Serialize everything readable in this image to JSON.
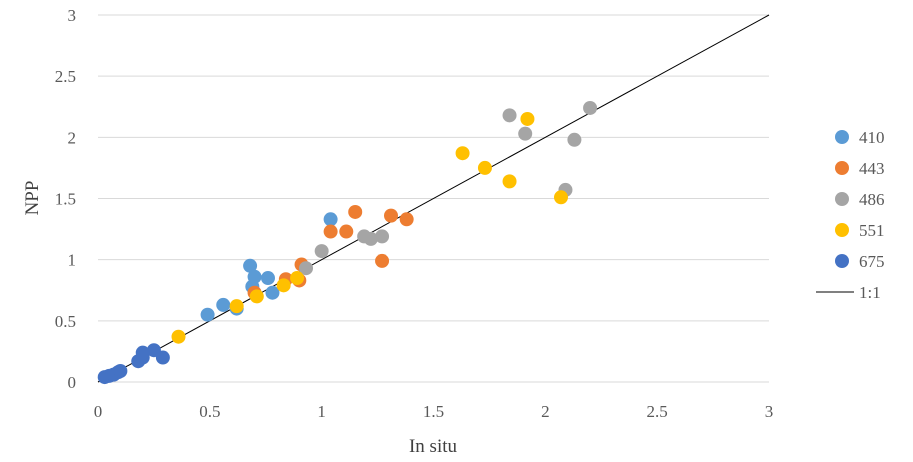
{
  "chart_data": {
    "type": "scatter",
    "title": "",
    "xlabel": "In situ",
    "ylabel": "NPP",
    "xlim": [
      0,
      3
    ],
    "ylim": [
      0,
      3
    ],
    "xticks": [
      "0",
      "0.5",
      "1",
      "1.5",
      "2",
      "2.5",
      "3"
    ],
    "yticks": [
      "0",
      "0.5",
      "1",
      "1.5",
      "2",
      "2.5",
      "3"
    ],
    "grid": "horizontal",
    "legend_position": "right",
    "series": [
      {
        "name": "410",
        "color": "#5b9bd5",
        "points": [
          [
            0.49,
            0.55
          ],
          [
            0.56,
            0.63
          ],
          [
            0.62,
            0.6
          ],
          [
            0.68,
            0.95
          ],
          [
            0.69,
            0.78
          ],
          [
            0.7,
            0.86
          ],
          [
            0.76,
            0.85
          ],
          [
            0.78,
            0.73
          ],
          [
            1.04,
            1.33
          ]
        ]
      },
      {
        "name": "443",
        "color": "#ed7d31",
        "points": [
          [
            0.7,
            0.73
          ],
          [
            0.84,
            0.84
          ],
          [
            0.9,
            0.83
          ],
          [
            0.91,
            0.96
          ],
          [
            1.04,
            1.23
          ],
          [
            1.11,
            1.23
          ],
          [
            1.15,
            1.39
          ],
          [
            1.27,
            0.99
          ],
          [
            1.31,
            1.36
          ],
          [
            1.38,
            1.33
          ]
        ]
      },
      {
        "name": "486",
        "color": "#a5a5a5",
        "points": [
          [
            0.93,
            0.93
          ],
          [
            1.0,
            1.07
          ],
          [
            1.19,
            1.19
          ],
          [
            1.22,
            1.17
          ],
          [
            1.27,
            1.19
          ],
          [
            1.84,
            2.18
          ],
          [
            1.91,
            2.03
          ],
          [
            2.09,
            1.57
          ],
          [
            2.13,
            1.98
          ],
          [
            2.2,
            2.24
          ]
        ]
      },
      {
        "name": "551",
        "color": "#ffc000",
        "points": [
          [
            0.36,
            0.37
          ],
          [
            0.62,
            0.62
          ],
          [
            0.71,
            0.7
          ],
          [
            0.83,
            0.79
          ],
          [
            0.89,
            0.85
          ],
          [
            1.63,
            1.87
          ],
          [
            1.73,
            1.75
          ],
          [
            1.84,
            1.64
          ],
          [
            1.92,
            2.15
          ],
          [
            2.07,
            1.51
          ]
        ]
      },
      {
        "name": "675",
        "color": "#4472c4",
        "points": [
          [
            0.03,
            0.04
          ],
          [
            0.05,
            0.05
          ],
          [
            0.07,
            0.06
          ],
          [
            0.09,
            0.08
          ],
          [
            0.1,
            0.09
          ],
          [
            0.18,
            0.17
          ],
          [
            0.2,
            0.2
          ],
          [
            0.2,
            0.24
          ],
          [
            0.25,
            0.26
          ],
          [
            0.29,
            0.2
          ]
        ]
      }
    ],
    "reference_line": {
      "name": "1:1",
      "from": [
        0,
        0
      ],
      "to": [
        3,
        3
      ],
      "color": "#000000"
    }
  }
}
